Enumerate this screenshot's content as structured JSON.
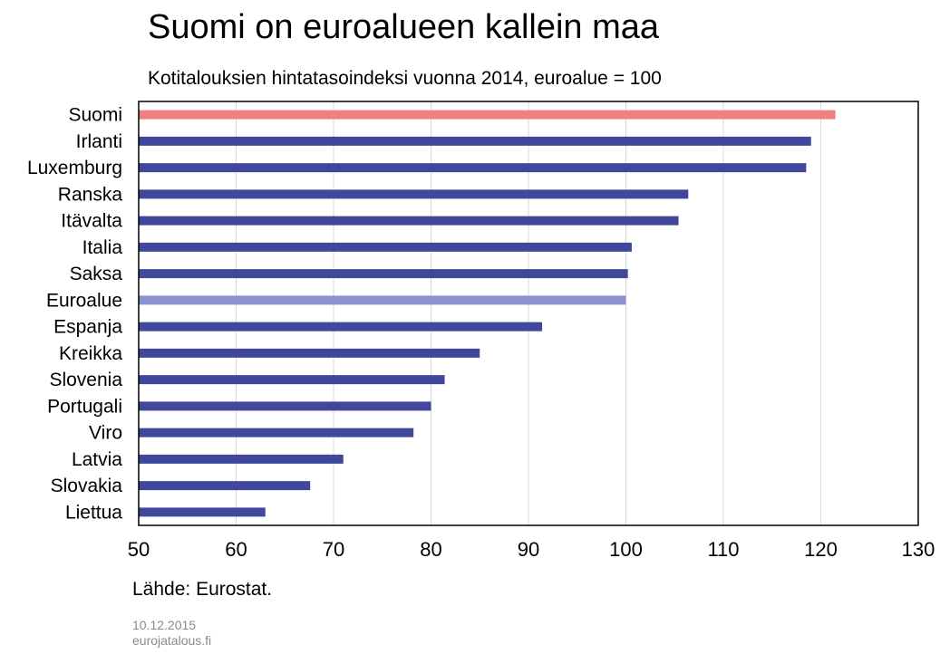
{
  "header": {
    "title": "Suomi on euroalueen kallein maa",
    "subtitle": "Kotitalouksien hintatasoindeksi vuonna 2014, euroalue = 100"
  },
  "footer": {
    "source": "Lähde: Eurostat.",
    "date": "10.12.2015",
    "site": "eurojatalous.fi"
  },
  "chart_data": {
    "type": "bar",
    "orientation": "horizontal",
    "title": "Suomi on euroalueen kallein maa",
    "subtitle": "Kotitalouksien hintatasoindeksi vuonna 2014, euroalue = 100",
    "categories": [
      "Suomi",
      "Irlanti",
      "Luxemburg",
      "Ranska",
      "Itävalta",
      "Italia",
      "Saksa",
      "Euroalue",
      "Espanja",
      "Kreikka",
      "Slovenia",
      "Portugali",
      "Viro",
      "Latvia",
      "Slovakia",
      "Liettua"
    ],
    "values": [
      121.5,
      119.0,
      118.5,
      106.4,
      105.4,
      100.6,
      100.2,
      100.0,
      91.4,
      85.0,
      81.4,
      80.0,
      78.2,
      71.0,
      67.6,
      63.0
    ],
    "colors": [
      "#f08080",
      "#41479b",
      "#41479b",
      "#41479b",
      "#41479b",
      "#41479b",
      "#41479b",
      "#8a92d0",
      "#41479b",
      "#41479b",
      "#41479b",
      "#41479b",
      "#41479b",
      "#41479b",
      "#41479b",
      "#41479b"
    ],
    "xlim": [
      50,
      130
    ],
    "xticks": [
      50,
      60,
      70,
      80,
      90,
      100,
      110,
      120,
      130
    ],
    "grid": true,
    "xlabel": "",
    "ylabel": ""
  }
}
